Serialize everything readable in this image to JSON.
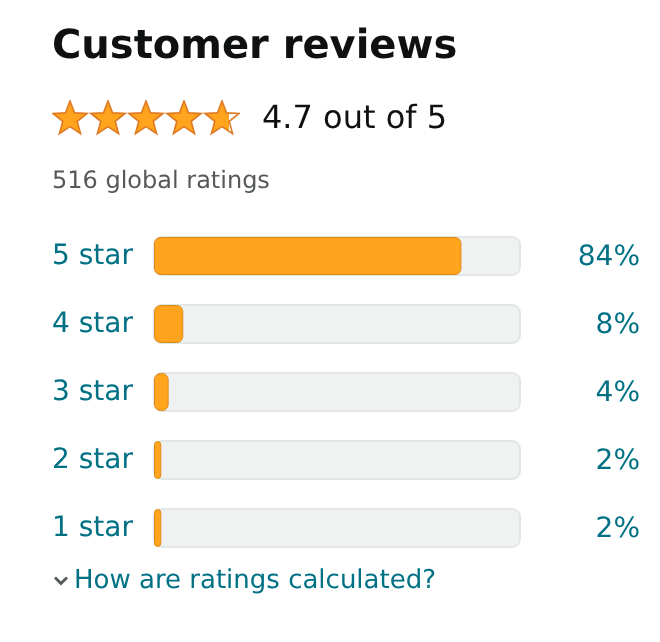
{
  "chart_data": {
    "type": "bar",
    "orientation": "horizontal",
    "title": "Customer reviews",
    "subtitle": "4.7 out of 5",
    "annotations": [
      "516 global ratings",
      "How are ratings calculated?"
    ],
    "categories": [
      "5 star",
      "4 star",
      "3 star",
      "2 star",
      "1 star"
    ],
    "values": [
      84,
      8,
      4,
      2,
      2
    ],
    "value_labels": [
      "84%",
      "8%",
      "4%",
      "2%",
      "2%"
    ],
    "color": "#ffa41c",
    "xlim": [
      0,
      100
    ],
    "tick_labels": "y"
  }
}
